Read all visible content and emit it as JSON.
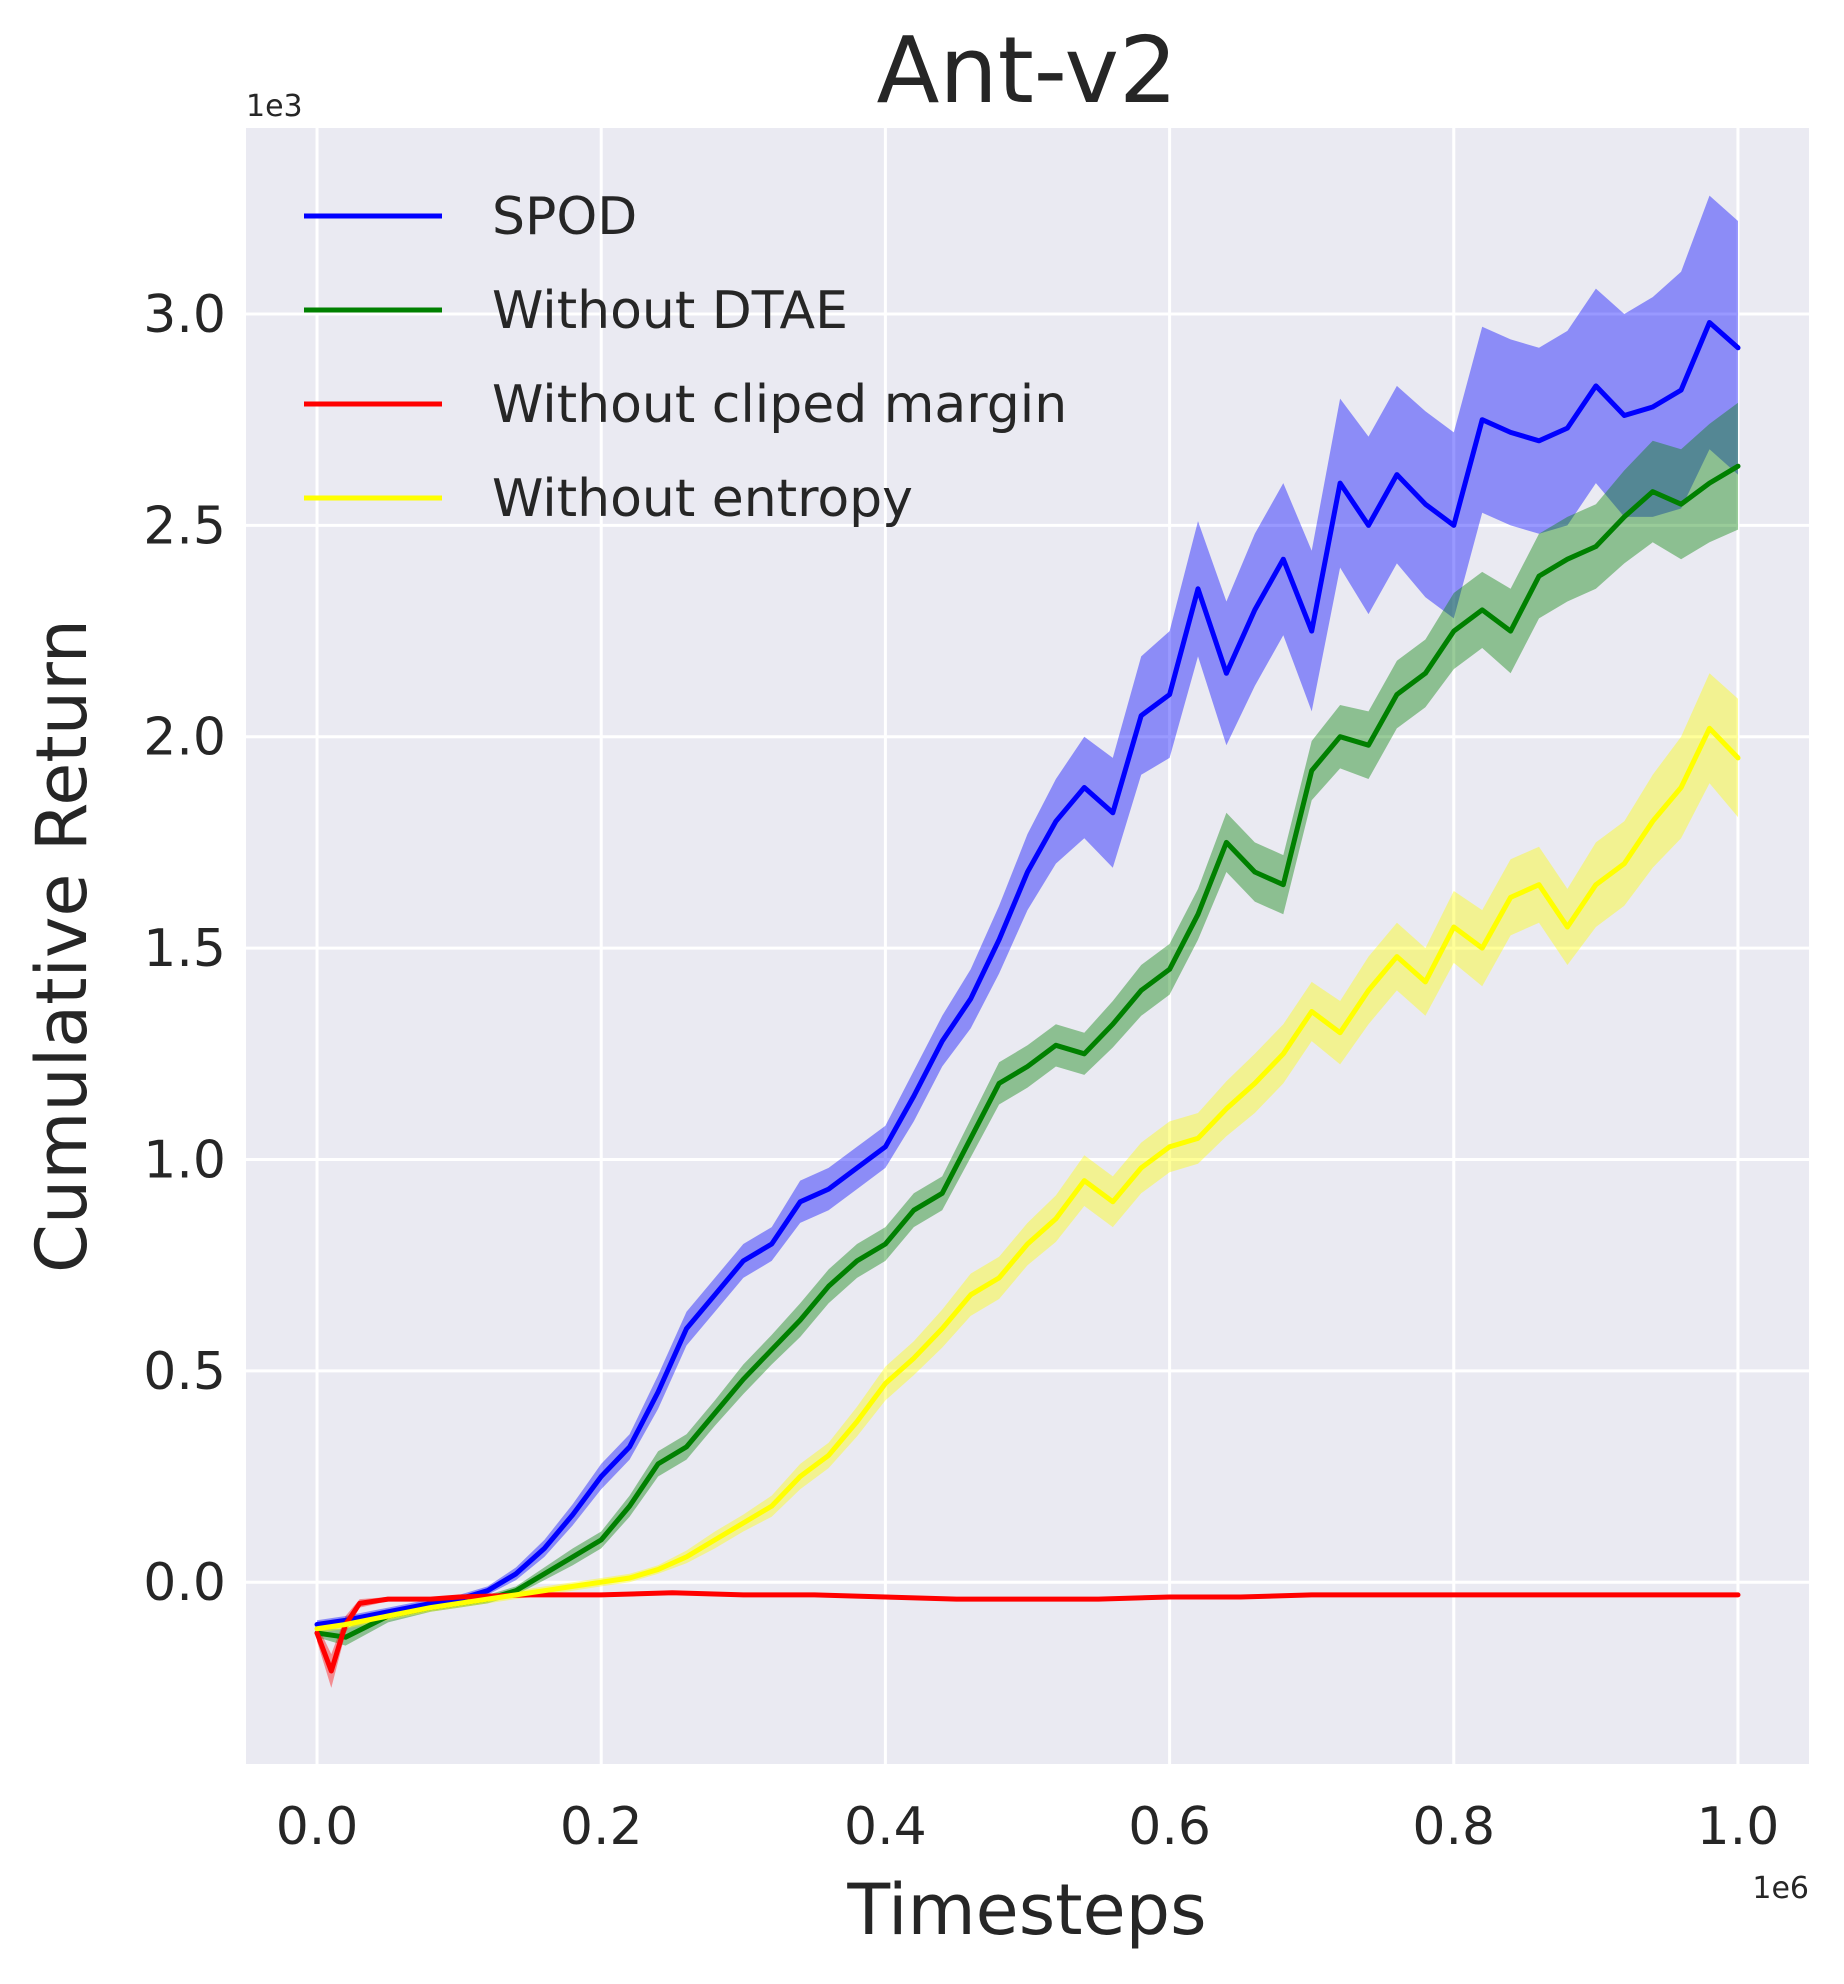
{
  "chart_data": {
    "type": "line",
    "title": "Ant-v2",
    "xlabel": "Timesteps",
    "ylabel": "Cumulative Return",
    "x_offset_label": "1e6",
    "y_offset_label": "1e3",
    "xlim": [
      -0.05,
      1.05
    ],
    "ylim": [
      -0.43,
      3.44
    ],
    "x_ticks": [
      0.0,
      0.2,
      0.4,
      0.6,
      0.8,
      1.0
    ],
    "x_tick_labels": [
      "0.0",
      "0.2",
      "0.4",
      "0.6",
      "0.8",
      "1.0"
    ],
    "y_ticks": [
      0.0,
      0.5,
      1.0,
      1.5,
      2.0,
      2.5,
      3.0
    ],
    "y_tick_labels": [
      "0.0",
      "0.5",
      "1.0",
      "1.5",
      "2.0",
      "2.5",
      "3.0"
    ],
    "grid": true,
    "legend_position": "upper-left",
    "series": [
      {
        "name": "SPOD",
        "color": "#0000ff",
        "x": [
          0.0,
          0.02,
          0.05,
          0.08,
          0.1,
          0.12,
          0.14,
          0.16,
          0.18,
          0.2,
          0.22,
          0.24,
          0.26,
          0.28,
          0.3,
          0.32,
          0.34,
          0.36,
          0.38,
          0.4,
          0.42,
          0.44,
          0.46,
          0.48,
          0.5,
          0.52,
          0.54,
          0.56,
          0.58,
          0.6,
          0.62,
          0.64,
          0.66,
          0.68,
          0.7,
          0.72,
          0.74,
          0.76,
          0.78,
          0.8,
          0.82,
          0.84,
          0.86,
          0.88,
          0.9,
          0.92,
          0.94,
          0.96,
          0.98,
          1.0
        ],
        "y": [
          -0.1,
          -0.09,
          -0.07,
          -0.05,
          -0.04,
          -0.02,
          0.02,
          0.08,
          0.16,
          0.25,
          0.32,
          0.45,
          0.6,
          0.68,
          0.76,
          0.8,
          0.9,
          0.93,
          0.98,
          1.03,
          1.15,
          1.28,
          1.38,
          1.52,
          1.68,
          1.8,
          1.88,
          1.82,
          2.05,
          2.1,
          2.35,
          2.15,
          2.3,
          2.42,
          2.25,
          2.6,
          2.5,
          2.62,
          2.55,
          2.5,
          2.75,
          2.72,
          2.7,
          2.73,
          2.83,
          2.76,
          2.78,
          2.82,
          2.98,
          2.92
        ],
        "band": [
          0.01,
          0.01,
          0.01,
          0.01,
          0.01,
          0.01,
          0.015,
          0.02,
          0.025,
          0.03,
          0.03,
          0.04,
          0.04,
          0.04,
          0.04,
          0.04,
          0.05,
          0.05,
          0.05,
          0.05,
          0.06,
          0.06,
          0.07,
          0.08,
          0.09,
          0.1,
          0.12,
          0.13,
          0.14,
          0.15,
          0.16,
          0.17,
          0.18,
          0.18,
          0.19,
          0.2,
          0.21,
          0.21,
          0.22,
          0.22,
          0.22,
          0.22,
          0.22,
          0.23,
          0.23,
          0.24,
          0.26,
          0.28,
          0.3,
          0.3
        ]
      },
      {
        "name": "Without DTAE",
        "color": "#008000",
        "x": [
          0.0,
          0.02,
          0.05,
          0.08,
          0.1,
          0.12,
          0.14,
          0.16,
          0.18,
          0.2,
          0.22,
          0.24,
          0.26,
          0.28,
          0.3,
          0.32,
          0.34,
          0.36,
          0.38,
          0.4,
          0.42,
          0.44,
          0.46,
          0.48,
          0.5,
          0.52,
          0.54,
          0.56,
          0.58,
          0.6,
          0.62,
          0.64,
          0.66,
          0.68,
          0.7,
          0.72,
          0.74,
          0.76,
          0.78,
          0.8,
          0.82,
          0.84,
          0.86,
          0.88,
          0.9,
          0.92,
          0.94,
          0.96,
          0.98,
          1.0
        ],
        "y": [
          -0.12,
          -0.13,
          -0.08,
          -0.06,
          -0.05,
          -0.04,
          -0.02,
          0.02,
          0.06,
          0.1,
          0.18,
          0.28,
          0.32,
          0.4,
          0.48,
          0.55,
          0.62,
          0.7,
          0.76,
          0.8,
          0.88,
          0.92,
          1.05,
          1.18,
          1.22,
          1.27,
          1.25,
          1.32,
          1.4,
          1.45,
          1.58,
          1.75,
          1.68,
          1.65,
          1.92,
          2.0,
          1.98,
          2.1,
          2.15,
          2.25,
          2.3,
          2.25,
          2.38,
          2.42,
          2.45,
          2.52,
          2.58,
          2.55,
          2.6,
          2.64
        ],
        "band": [
          0.01,
          0.02,
          0.015,
          0.01,
          0.01,
          0.01,
          0.01,
          0.015,
          0.02,
          0.02,
          0.025,
          0.03,
          0.03,
          0.03,
          0.035,
          0.035,
          0.04,
          0.04,
          0.04,
          0.04,
          0.04,
          0.04,
          0.045,
          0.05,
          0.05,
          0.05,
          0.05,
          0.055,
          0.06,
          0.06,
          0.06,
          0.07,
          0.07,
          0.07,
          0.07,
          0.075,
          0.08,
          0.08,
          0.08,
          0.09,
          0.09,
          0.1,
          0.1,
          0.1,
          0.1,
          0.11,
          0.12,
          0.13,
          0.14,
          0.15
        ]
      },
      {
        "name": "Without cliped margin",
        "color": "#ff0000",
        "x": [
          0.0,
          0.01,
          0.02,
          0.03,
          0.05,
          0.08,
          0.1,
          0.15,
          0.2,
          0.25,
          0.3,
          0.35,
          0.4,
          0.45,
          0.5,
          0.55,
          0.6,
          0.65,
          0.7,
          0.75,
          0.8,
          0.85,
          0.9,
          0.95,
          1.0
        ],
        "y": [
          -0.12,
          -0.21,
          -0.1,
          -0.05,
          -0.04,
          -0.04,
          -0.035,
          -0.03,
          -0.03,
          -0.025,
          -0.03,
          -0.03,
          -0.035,
          -0.04,
          -0.04,
          -0.04,
          -0.035,
          -0.035,
          -0.03,
          -0.03,
          -0.03,
          -0.03,
          -0.03,
          -0.03,
          -0.03
        ],
        "band": [
          0.02,
          0.04,
          0.02,
          0.01,
          0.005,
          0.005,
          0.005,
          0.005,
          0.005,
          0.005,
          0.005,
          0.005,
          0.005,
          0.005,
          0.005,
          0.005,
          0.005,
          0.005,
          0.005,
          0.005,
          0.005,
          0.005,
          0.005,
          0.005,
          0.005
        ]
      },
      {
        "name": "Without entropy",
        "color": "#ffff00",
        "x": [
          0.0,
          0.02,
          0.05,
          0.08,
          0.1,
          0.12,
          0.14,
          0.16,
          0.18,
          0.2,
          0.22,
          0.24,
          0.26,
          0.28,
          0.3,
          0.32,
          0.34,
          0.36,
          0.38,
          0.4,
          0.42,
          0.44,
          0.46,
          0.48,
          0.5,
          0.52,
          0.54,
          0.56,
          0.58,
          0.6,
          0.62,
          0.64,
          0.66,
          0.68,
          0.7,
          0.72,
          0.74,
          0.76,
          0.78,
          0.8,
          0.82,
          0.84,
          0.86,
          0.88,
          0.9,
          0.92,
          0.94,
          0.96,
          0.98,
          1.0
        ],
        "y": [
          -0.11,
          -0.1,
          -0.08,
          -0.06,
          -0.05,
          -0.04,
          -0.03,
          -0.02,
          -0.01,
          0.0,
          0.01,
          0.03,
          0.06,
          0.1,
          0.14,
          0.18,
          0.25,
          0.3,
          0.38,
          0.47,
          0.53,
          0.6,
          0.68,
          0.72,
          0.8,
          0.86,
          0.95,
          0.9,
          0.98,
          1.03,
          1.05,
          1.12,
          1.18,
          1.25,
          1.35,
          1.3,
          1.4,
          1.48,
          1.42,
          1.55,
          1.5,
          1.62,
          1.65,
          1.55,
          1.65,
          1.7,
          1.8,
          1.88,
          2.02,
          1.95
        ],
        "band": [
          0.01,
          0.01,
          0.01,
          0.01,
          0.01,
          0.01,
          0.01,
          0.01,
          0.01,
          0.01,
          0.01,
          0.01,
          0.015,
          0.02,
          0.02,
          0.025,
          0.03,
          0.03,
          0.035,
          0.04,
          0.04,
          0.045,
          0.05,
          0.05,
          0.05,
          0.055,
          0.06,
          0.06,
          0.06,
          0.06,
          0.06,
          0.065,
          0.07,
          0.07,
          0.07,
          0.075,
          0.08,
          0.08,
          0.08,
          0.085,
          0.09,
          0.09,
          0.09,
          0.09,
          0.1,
          0.1,
          0.11,
          0.12,
          0.13,
          0.14
        ]
      }
    ]
  }
}
